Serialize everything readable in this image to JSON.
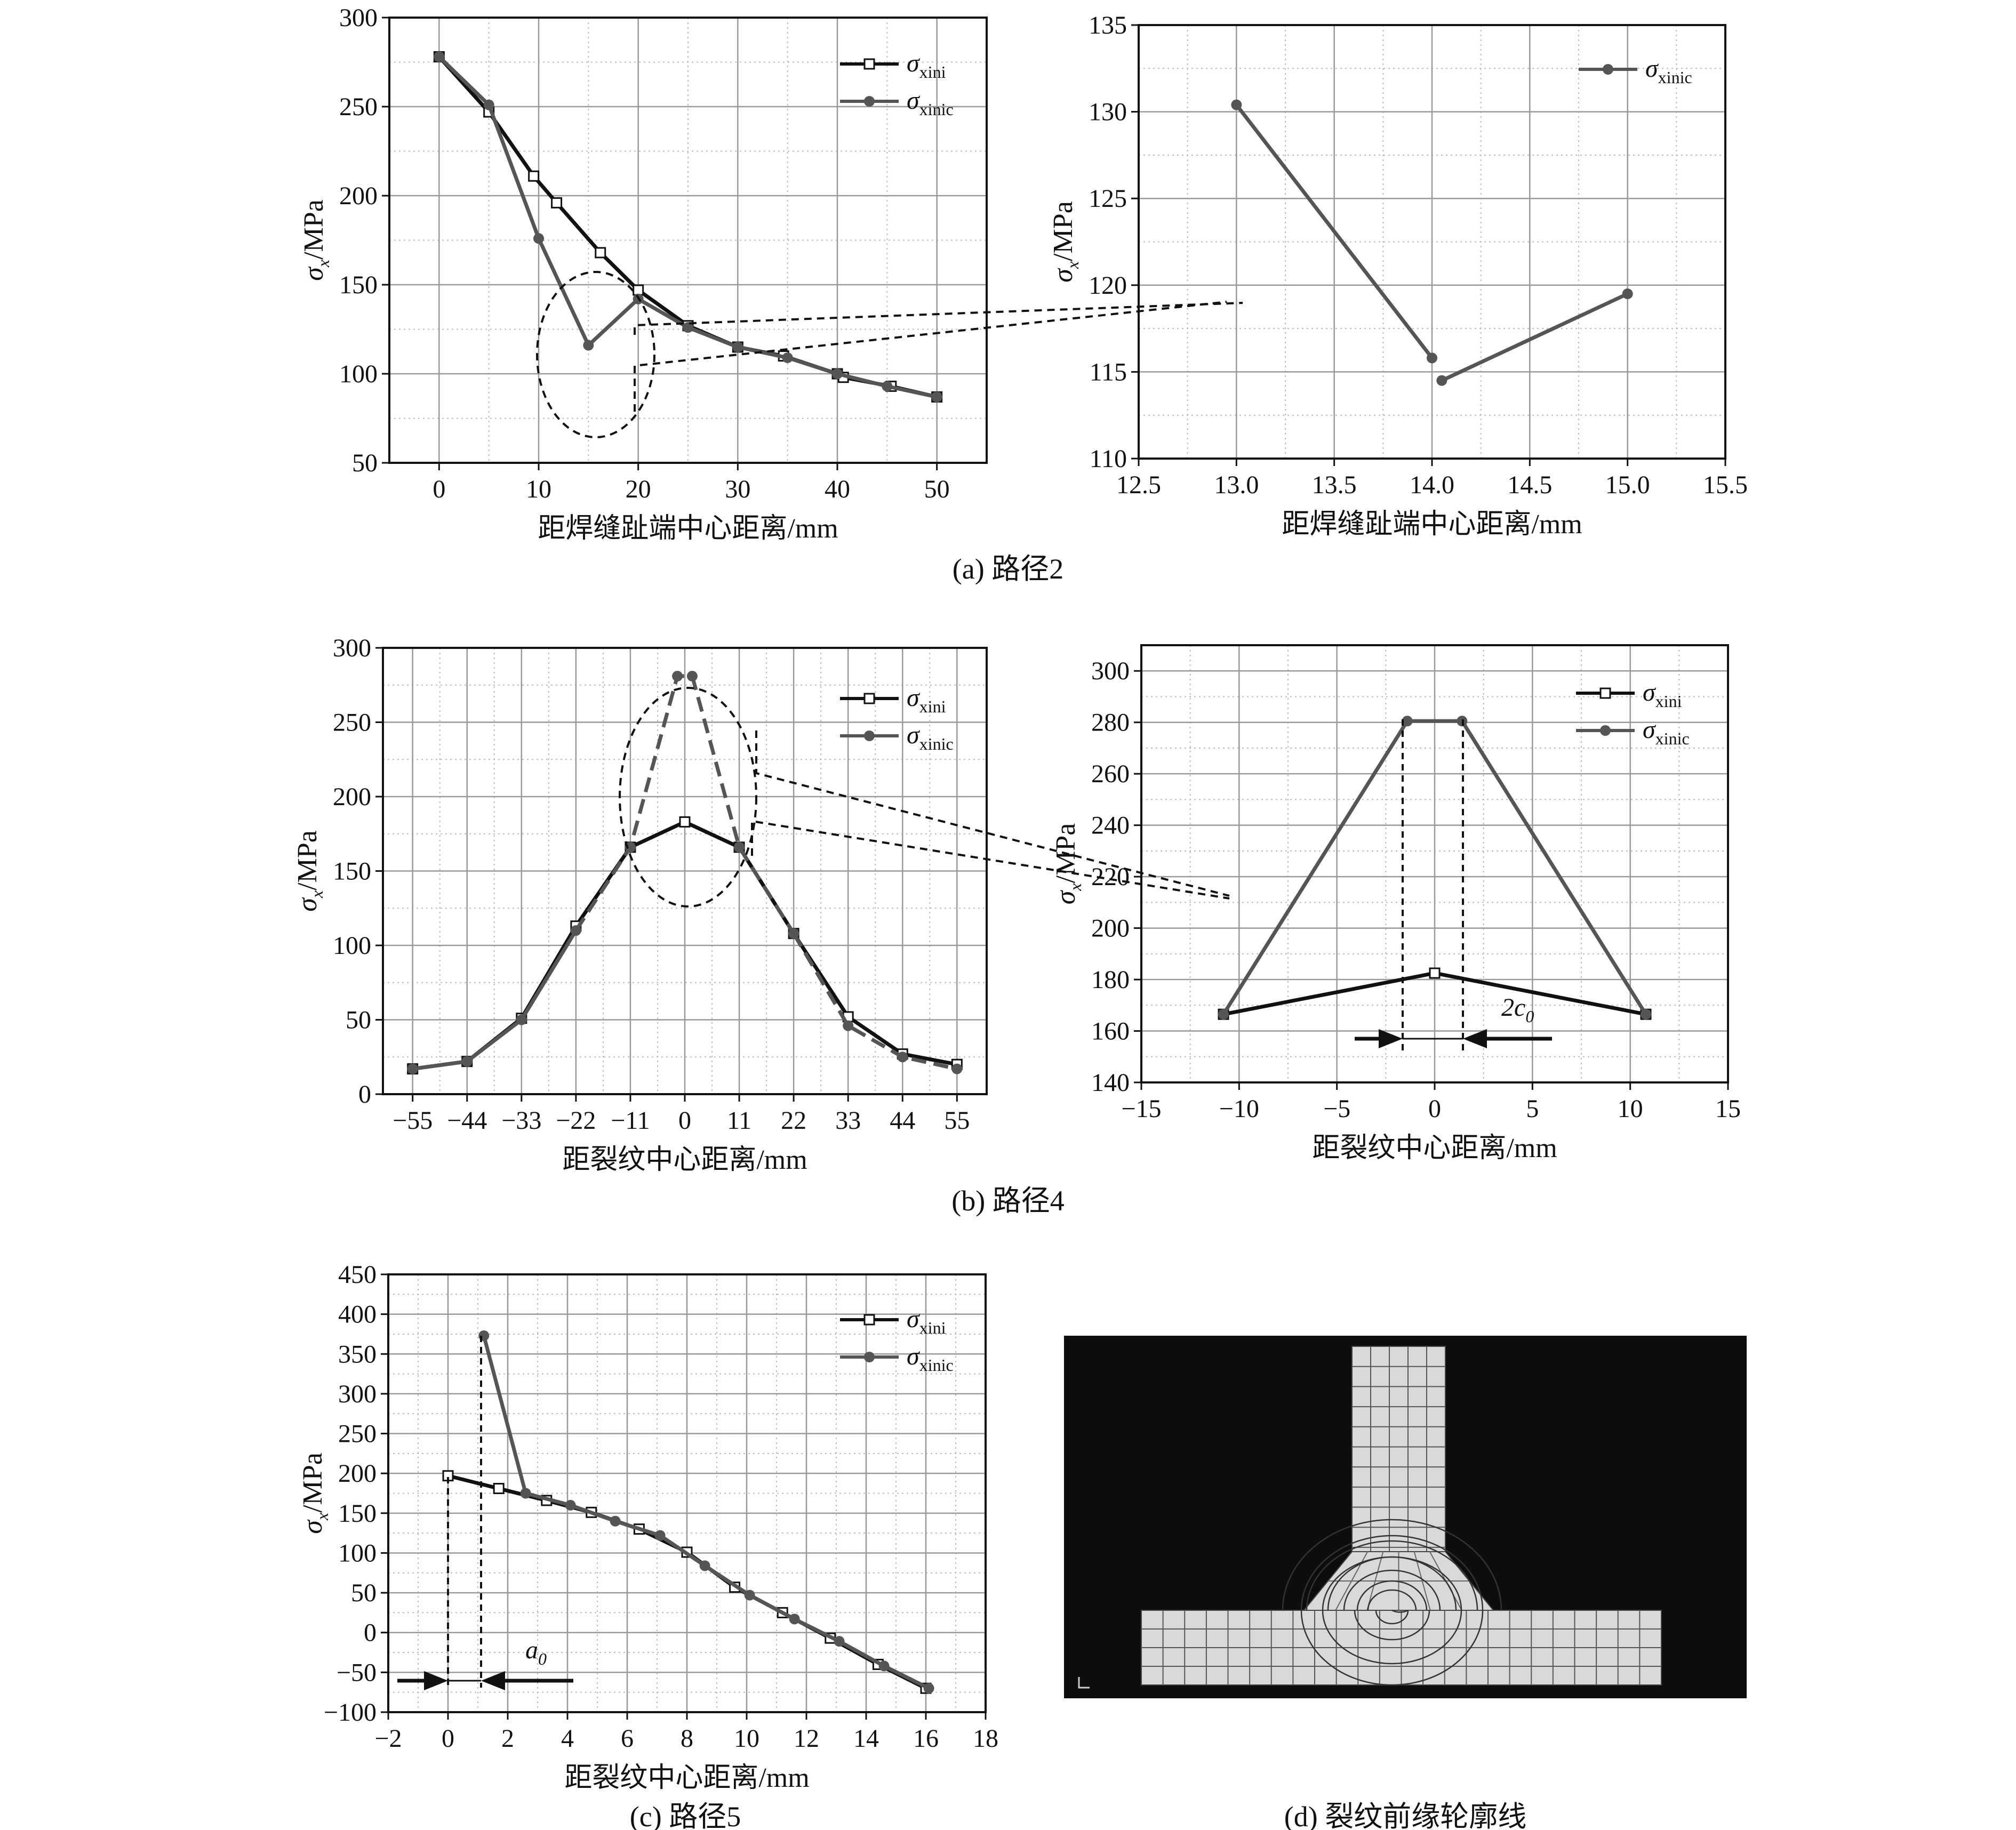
{
  "series_labels": {
    "ini": "xini",
    "inic": "xinic"
  },
  "captions": {
    "a": "(a) 路径2",
    "b": "(b) 路径4",
    "c": "(c) 路径5",
    "d": "(d) 裂纹前缘轮廓线"
  },
  "annotations": {
    "two_c0": "2c",
    "two_c0_sub": "0",
    "a0": "a",
    "a0_sub": "0"
  },
  "colors": {
    "ini": "#111111",
    "inic": "#555555",
    "grid": "#999999",
    "mesh_bg": "#0d0d0d",
    "mesh_fill": "#d9d9d9"
  },
  "chart_data": [
    {
      "id": "a1",
      "type": "line",
      "xlabel": "距焊缝趾端中心距离/mm",
      "ylabel": "σx/MPa",
      "xlim": [
        -5,
        55
      ],
      "ylim": [
        50,
        300
      ],
      "xticks": [
        0,
        10,
        20,
        30,
        40,
        50
      ],
      "yticks": [
        50,
        100,
        150,
        200,
        250,
        300
      ],
      "legend": "top-right",
      "grid": true,
      "series": [
        {
          "key": "ini",
          "name": "xini",
          "marker": "square",
          "x": [
            0,
            5,
            9.5,
            11.8,
            16.2,
            20,
            25,
            30,
            34.6,
            40,
            40.6,
            45.4,
            50
          ],
          "y": [
            278,
            247,
            211,
            196,
            168,
            147,
            127,
            115,
            110,
            100,
            98,
            93,
            87
          ]
        },
        {
          "key": "inic",
          "name": "xinic",
          "marker": "circle",
          "x": [
            0,
            5,
            10,
            15,
            20,
            25,
            30,
            35,
            40,
            45,
            50
          ],
          "y": [
            278,
            251,
            176,
            116,
            142,
            126,
            115,
            109,
            100,
            93,
            87
          ]
        }
      ]
    },
    {
      "id": "a2",
      "type": "line",
      "xlabel": "距焊缝趾端中心距离/mm",
      "ylabel": "σx/MPa",
      "xlim": [
        12.5,
        15.5
      ],
      "ylim": [
        110,
        135
      ],
      "xticks": [
        12.5,
        13.0,
        13.5,
        14.0,
        14.5,
        15.0,
        15.5
      ],
      "yticks": [
        110,
        115,
        120,
        125,
        130,
        135
      ],
      "legend": "top-right",
      "grid": true,
      "series": [
        {
          "key": "inic",
          "name": "xinic",
          "marker": "circle",
          "x": [
            13.0,
            14.0,
            14.05,
            15.0
          ],
          "y": [
            130.4,
            115.8,
            114.5,
            119.5
          ]
        }
      ]
    },
    {
      "id": "b1",
      "type": "line",
      "xlabel": "距裂纹中心距离/mm",
      "ylabel": "σx/MPa",
      "xlim": [
        -61,
        61
      ],
      "ylim": [
        0,
        300
      ],
      "xticks": [
        -55,
        -44,
        -33,
        -22,
        -11,
        0,
        11,
        22,
        33,
        44,
        55
      ],
      "yticks": [
        0,
        50,
        100,
        150,
        200,
        250,
        300
      ],
      "legend": "top-right",
      "grid": true,
      "series": [
        {
          "key": "ini",
          "name": "xini",
          "marker": "square",
          "x": [
            -55,
            -44,
            -33,
            -22,
            -11,
            0,
            11,
            22,
            33,
            44,
            55
          ],
          "y": [
            17,
            22,
            51,
            113,
            166,
            183,
            166,
            108,
            52,
            27,
            20
          ]
        },
        {
          "key": "inic",
          "name": "xinic",
          "marker": "circle",
          "x": [
            -55,
            -44,
            -33,
            -22,
            -11,
            -1.5,
            1.5,
            11,
            22,
            33,
            44,
            55
          ],
          "y": [
            17,
            22,
            50,
            110,
            166,
            281,
            281,
            166,
            108,
            46,
            25,
            17
          ]
        }
      ]
    },
    {
      "id": "b2",
      "type": "line",
      "xlabel": "距裂纹中心距离/mm",
      "ylabel": "σx/MPa",
      "xlim": [
        -15,
        15
      ],
      "ylim": [
        140,
        310
      ],
      "xticks": [
        -15,
        -10,
        -5,
        0,
        5,
        10,
        15
      ],
      "yticks": [
        140,
        160,
        180,
        200,
        220,
        240,
        260,
        280,
        300
      ],
      "legend": "top-right",
      "grid": true,
      "series": [
        {
          "key": "ini",
          "name": "xini",
          "marker": "square",
          "x": [
            -10.8,
            0,
            10.8
          ],
          "y": [
            166.5,
            182.5,
            166.5
          ]
        },
        {
          "key": "inic",
          "name": "xinic",
          "marker": "circle",
          "x": [
            -10.8,
            -1.4,
            1.4,
            10.8
          ],
          "y": [
            166.5,
            280.5,
            280.5,
            166.5
          ]
        }
      ]
    },
    {
      "id": "c1",
      "type": "line",
      "xlabel": "距裂纹中心距离/mm",
      "ylabel": "σx/MPa",
      "xlim": [
        -2,
        18
      ],
      "ylim": [
        -100,
        450
      ],
      "xticks": [
        -2,
        0,
        2,
        4,
        6,
        8,
        10,
        12,
        14,
        16,
        18
      ],
      "yticks": [
        -100,
        -50,
        0,
        50,
        100,
        150,
        200,
        250,
        300,
        350,
        400,
        450
      ],
      "legend": "top-right",
      "grid": true,
      "series": [
        {
          "key": "ini",
          "name": "xini",
          "marker": "square",
          "x": [
            0,
            1.7,
            3.3,
            4.8,
            6.4,
            8.0,
            9.6,
            11.2,
            12.8,
            14.4,
            16.0
          ],
          "y": [
            197,
            181,
            166,
            151,
            130,
            101,
            57,
            25,
            -7,
            -40,
            -70
          ]
        },
        {
          "key": "inic",
          "name": "xinic",
          "marker": "circle",
          "x": [
            1.2,
            2.6,
            4.1,
            5.6,
            7.1,
            8.6,
            10.1,
            11.6,
            13.1,
            14.6,
            16.1
          ],
          "y": [
            373,
            175,
            160,
            140,
            122,
            84,
            47,
            17,
            -11,
            -42,
            -70
          ]
        }
      ]
    }
  ]
}
